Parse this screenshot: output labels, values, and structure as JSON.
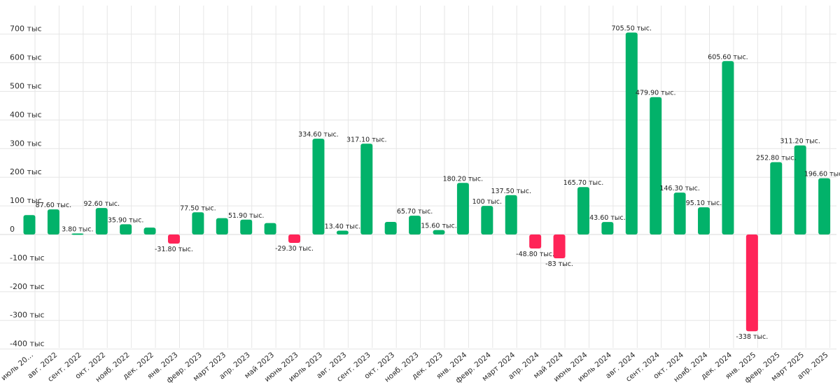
{
  "chart_data": {
    "type": "bar",
    "categories": [
      "июль 20…",
      "авг. 2022",
      "сент. 2022",
      "окт. 2022",
      "нояб. 2022",
      "дек. 2022",
      "янв. 2023",
      "февр. 2023",
      "март 2023",
      "апр. 2023",
      "май 2023",
      "июнь 2023",
      "июль 2023",
      "авг. 2023",
      "сент. 2023",
      "окт. 2023",
      "нояб. 2023",
      "дек. 2023",
      "янв. 2024",
      "февр. 2024",
      "март 2024",
      "апр. 2024",
      "май 2024",
      "июнь 2024",
      "июль 2024",
      "авг. 2024",
      "сент. 2024",
      "окт. 2024",
      "нояб. 2024",
      "дек. 2024",
      "янв. 2025",
      "февр. 2025",
      "март 2025",
      "апр. 2025"
    ],
    "values": [
      68,
      87.6,
      3.8,
      92.6,
      35.9,
      24,
      -31.8,
      77.5,
      57,
      51.9,
      40,
      -29.3,
      334.6,
      13.4,
      317.1,
      44,
      65.7,
      15.6,
      180.2,
      100,
      137.5,
      -48.8,
      -83,
      165.7,
      43.6,
      705.5,
      479.9,
      146.3,
      95.1,
      605.6,
      -338,
      252.8,
      311.2,
      196.6
    ],
    "data_labels": [
      "",
      "87.60 тыс.",
      "3.80 тыс.",
      "92.60 тыс.",
      "35.90 тыс.",
      "",
      "-31.80 тыс.",
      "77.50 тыс.",
      "",
      "51.90 тыс.",
      "",
      "-29.30 тыс.",
      "334.60 тыс.",
      "13.40 тыс.",
      "317.10 тыс.",
      "",
      "65.70 тыс.",
      "15.60 тыс.",
      "180.20 тыс.",
      "100 тыс.",
      "137.50 тыс.",
      "-48.80 тыс.",
      "-83 тыс.",
      "165.70 тыс.",
      "43.60 тыс.",
      "705.50 тыс.",
      "479.90 тыс.",
      "146.30 тыс.",
      "95.10 тыс.",
      "605.60 тыс.",
      "-338 тыс.",
      "252.80 тыс.",
      "311.20 тыс.",
      "196.60 тыс."
    ],
    "y_ticks": [
      700,
      600,
      500,
      400,
      300,
      200,
      100,
      0,
      -100,
      -200,
      -300,
      -400
    ],
    "y_tick_labels": [
      "700 тыс",
      "600 тыс",
      "500 тыс",
      "400 тыс",
      "300 тыс",
      "200 тыс",
      "100 тыс",
      "0",
      "-100 тыс",
      "-200 тыс",
      "-300 тыс",
      "-400 тыс"
    ],
    "ylim": [
      -420,
      780
    ],
    "grid": true,
    "colors": {
      "positive": "#02B26A",
      "negative": "#FF2458"
    },
    "title": "",
    "xlabel": "",
    "ylabel": ""
  }
}
